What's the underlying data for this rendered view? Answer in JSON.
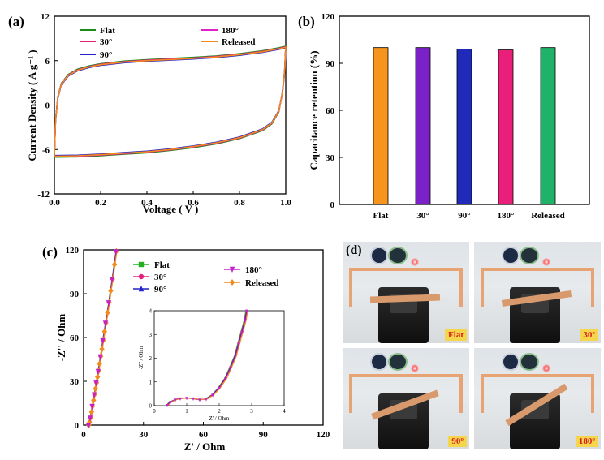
{
  "panels": {
    "a": {
      "label": "(a)",
      "chart_data": {
        "type": "line",
        "xlabel": "Voltage ( V )",
        "ylabel": "Current Density ( A g⁻¹ )",
        "xlim": [
          0,
          1.0
        ],
        "ylim": [
          -12,
          12
        ],
        "xticks": [
          "0.0",
          "0.2",
          "0.4",
          "0.6",
          "0.8",
          "1.0"
        ],
        "yticks": [
          "-12",
          "-6",
          "0",
          "6",
          "12"
        ],
        "series": [
          {
            "name": "Flat",
            "color": "#1a8c1a"
          },
          {
            "name": "30°",
            "color": "#e0207a"
          },
          {
            "name": "90°",
            "color": "#2222c8"
          },
          {
            "name": "180°",
            "color": "#e020c8"
          },
          {
            "name": "Released",
            "color": "#f28a1e"
          }
        ],
        "curve": {
          "upper": [
            [
              0.0,
              -6.8
            ],
            [
              0.005,
              -2.0
            ],
            [
              0.015,
              1.0
            ],
            [
              0.03,
              2.8
            ],
            [
              0.06,
              4.0
            ],
            [
              0.1,
              4.7
            ],
            [
              0.15,
              5.15
            ],
            [
              0.2,
              5.45
            ],
            [
              0.3,
              5.8
            ],
            [
              0.4,
              6.0
            ],
            [
              0.5,
              6.15
            ],
            [
              0.6,
              6.3
            ],
            [
              0.7,
              6.5
            ],
            [
              0.8,
              6.8
            ],
            [
              0.9,
              7.2
            ],
            [
              0.97,
              7.6
            ],
            [
              1.0,
              7.8
            ]
          ],
          "lower": [
            [
              1.0,
              7.8
            ],
            [
              0.995,
              4.5
            ],
            [
              0.985,
              1.5
            ],
            [
              0.97,
              -0.8
            ],
            [
              0.94,
              -2.4
            ],
            [
              0.9,
              -3.3
            ],
            [
              0.8,
              -4.4
            ],
            [
              0.7,
              -5.1
            ],
            [
              0.6,
              -5.6
            ],
            [
              0.5,
              -6.0
            ],
            [
              0.4,
              -6.3
            ],
            [
              0.3,
              -6.5
            ],
            [
              0.2,
              -6.7
            ],
            [
              0.1,
              -6.85
            ],
            [
              0.0,
              -6.9
            ]
          ]
        }
      }
    },
    "b": {
      "label": "(b)",
      "chart_data": {
        "type": "bar",
        "ylabel": "Capacitance retention (%)",
        "categories": [
          "Flat",
          "30°",
          "90°",
          "180°",
          "Released"
        ],
        "values": [
          100,
          100,
          99,
          98.5,
          100
        ],
        "colors": [
          "#f7941d",
          "#7a22c8",
          "#1f2bb8",
          "#ea1f7a",
          "#1fb36a"
        ],
        "ylim": [
          0,
          120
        ],
        "yticks": [
          "0",
          "30",
          "60",
          "90",
          "120"
        ]
      }
    },
    "c": {
      "label": "(c)",
      "chart_data": {
        "type": "line",
        "xlabel": "Z' / Ohm",
        "ylabel": "-Z'' / Ohm",
        "xlim": [
          0,
          120
        ],
        "ylim": [
          0,
          120
        ],
        "xticks": [
          "0",
          "30",
          "60",
          "90",
          "120"
        ],
        "yticks": [
          "0",
          "30",
          "60",
          "90",
          "120"
        ],
        "series": [
          {
            "name": "Flat",
            "color": "#22b022",
            "marker": "square"
          },
          {
            "name": "30°",
            "color": "#e0207a",
            "marker": "circle"
          },
          {
            "name": "90°",
            "color": "#2222c8",
            "marker": "triangle-up"
          },
          {
            "name": "180°",
            "color": "#c820c8",
            "marker": "triangle-down"
          },
          {
            "name": "Released",
            "color": "#f28a1e",
            "marker": "diamond"
          }
        ],
        "points": [
          [
            2.6,
            0
          ],
          [
            3.0,
            2
          ],
          [
            3.5,
            5
          ],
          [
            4.0,
            9
          ],
          [
            4.5,
            13
          ],
          [
            5.0,
            17
          ],
          [
            5.5,
            21
          ],
          [
            6.0,
            25
          ],
          [
            6.5,
            29
          ],
          [
            7.0,
            33
          ],
          [
            7.5,
            37
          ],
          [
            8.0,
            42
          ],
          [
            8.6,
            47
          ],
          [
            9.2,
            52
          ],
          [
            9.8,
            58
          ],
          [
            10.5,
            64
          ],
          [
            11.2,
            70
          ],
          [
            12.0,
            77
          ],
          [
            12.8,
            84
          ],
          [
            13.6,
            92
          ],
          [
            14.5,
            100
          ],
          [
            15.5,
            110
          ],
          [
            16.4,
            119
          ]
        ],
        "inset": {
          "xlabel": "Z' / Ohm",
          "ylabel": "-Z'' / Ohm",
          "xlim": [
            0,
            4
          ],
          "ylim": [
            0,
            4
          ],
          "xticks": [
            "0",
            "1",
            "2",
            "3",
            "4"
          ],
          "yticks": [
            "0",
            "1",
            "2",
            "3",
            "4"
          ],
          "points": [
            [
              0.4,
              0.02
            ],
            [
              0.5,
              0.15
            ],
            [
              0.65,
              0.25
            ],
            [
              0.8,
              0.3
            ],
            [
              1.0,
              0.32
            ],
            [
              1.2,
              0.3
            ],
            [
              1.4,
              0.25
            ],
            [
              1.6,
              0.28
            ],
            [
              1.8,
              0.45
            ],
            [
              2.0,
              0.75
            ],
            [
              2.2,
              1.15
            ],
            [
              2.35,
              1.6
            ],
            [
              2.5,
              2.1
            ],
            [
              2.6,
              2.6
            ],
            [
              2.7,
              3.1
            ],
            [
              2.8,
              3.6
            ],
            [
              2.85,
              4.0
            ]
          ]
        }
      }
    },
    "d": {
      "label": "(d)",
      "photos": [
        {
          "tag": "Flat"
        },
        {
          "tag": "30º"
        },
        {
          "tag": "90º"
        },
        {
          "tag": "180º"
        }
      ]
    }
  }
}
